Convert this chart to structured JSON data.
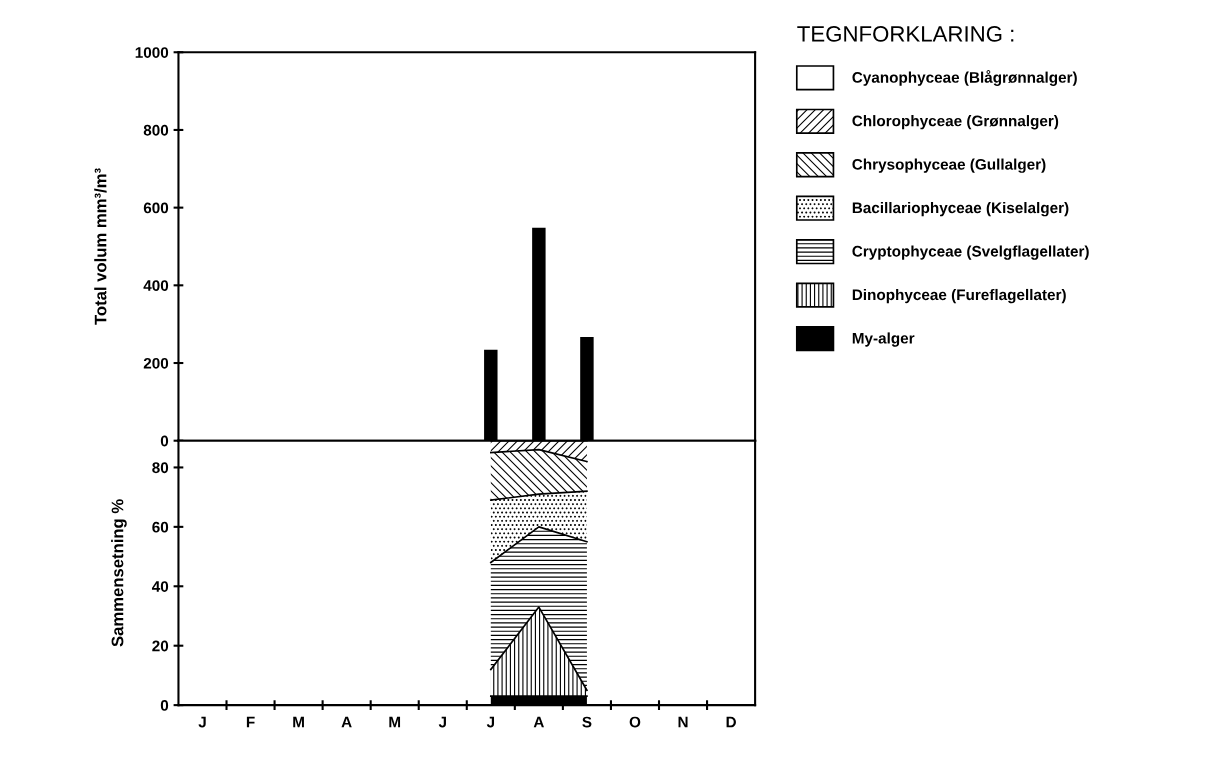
{
  "chart_data": [
    {
      "type": "bar",
      "ylabel": "Total volum mm³/m³",
      "categories": [
        null,
        null,
        null,
        null,
        null,
        null,
        null,
        null,
        null,
        null,
        null,
        null
      ],
      "values": [
        null,
        null,
        null,
        null,
        null,
        null,
        234,
        548,
        267,
        null,
        null,
        null
      ],
      "color": "#000000",
      "ylim": [
        0,
        1000
      ],
      "yticks": [
        0,
        200,
        400,
        600,
        800,
        1000
      ],
      "tick_labels": "y",
      "grid": false,
      "legend": false
    },
    {
      "type": "area",
      "stacked": true,
      "ylabel": "Sammensetning %",
      "categories": [
        "J",
        "F",
        "M",
        "A",
        "M",
        "J",
        "J",
        "A",
        "S",
        "O",
        "N",
        "D"
      ],
      "series": [
        {
          "name": "My-alger",
          "color": "#000000",
          "values": [
            null,
            null,
            null,
            null,
            null,
            null,
            3,
            3,
            3,
            null,
            null,
            null
          ]
        },
        {
          "name": "Dinophyceae (Fureflagellater)",
          "color": "#000000",
          "values": [
            null,
            null,
            null,
            null,
            null,
            null,
            9,
            30,
            2,
            null,
            null,
            null
          ]
        },
        {
          "name": "Cryptophyceae (Svelgflagellater)",
          "color": "#000000",
          "values": [
            null,
            null,
            null,
            null,
            null,
            null,
            36,
            27,
            50,
            null,
            null,
            null
          ]
        },
        {
          "name": "Bacillariophyceae (Kiselalger)",
          "color": "#000000",
          "values": [
            null,
            null,
            null,
            null,
            null,
            null,
            21,
            11,
            17,
            null,
            null,
            null
          ]
        },
        {
          "name": "Chrysophyceae (Gullalger)",
          "color": "#000000",
          "values": [
            null,
            null,
            null,
            null,
            null,
            null,
            16,
            15,
            10,
            null,
            null,
            null
          ]
        },
        {
          "name": "Chlorophyceae (Grønnalger)",
          "color": "#000000",
          "values": [
            null,
            null,
            null,
            null,
            null,
            null,
            4,
            3,
            7,
            null,
            null,
            null
          ]
        },
        {
          "name": "Cyanophyceae (Blågrønnalger)",
          "color": "#ffffff",
          "values": [
            null,
            null,
            null,
            null,
            null,
            null,
            null,
            null,
            null,
            null,
            null,
            null
          ]
        }
      ],
      "ylim": [
        0,
        89
      ],
      "yticks": [
        0,
        20,
        40,
        60,
        80
      ],
      "grid": false,
      "legend": "right",
      "legend_title": "TEGNFORKLARING :"
    }
  ]
}
